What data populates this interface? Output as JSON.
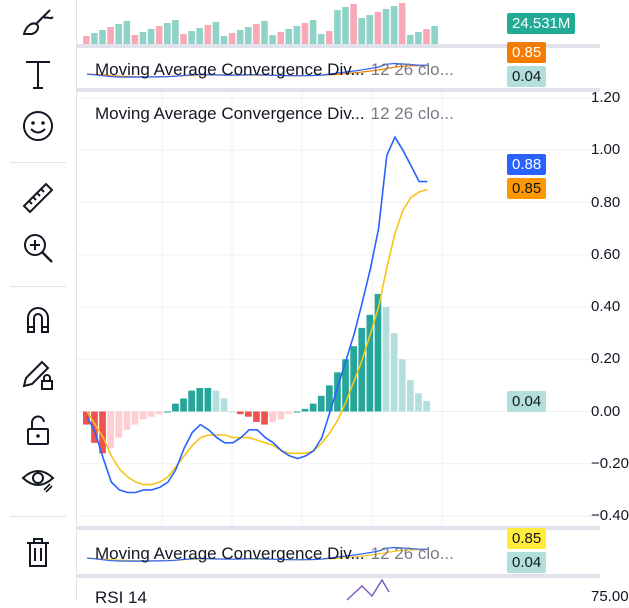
{
  "toolbar": {
    "items": [
      {
        "name": "brush-icon"
      },
      {
        "name": "text-icon"
      },
      {
        "name": "emoji-icon"
      },
      {
        "name": "ruler-icon"
      },
      {
        "name": "zoom-in-icon"
      },
      {
        "name": "magnet-icon"
      },
      {
        "name": "pencil-lock-icon"
      },
      {
        "name": "unlock-icon"
      },
      {
        "name": "eye-icon"
      },
      {
        "name": "trash-icon"
      }
    ]
  },
  "volume_pane": {
    "value_badge": "24.531M",
    "badge_color": "#22ab94"
  },
  "macd_collapsed_top": {
    "title": "Moving Average Convergence Div...",
    "params": "12 26 clo...",
    "badge_signal": "0.85",
    "badge_hist": "0.04",
    "signal_color": "#f57c00",
    "hist_color": "#b2dfdb"
  },
  "macd_main": {
    "title": "Moving Average Convergence Div...",
    "params": "12 26 clo...",
    "badge_macd": "0.88",
    "badge_signal": "0.85",
    "badge_hist": "0.04",
    "ticks": [
      "1.20",
      "1.00",
      "0.80",
      "0.60",
      "0.40",
      "0.20",
      "0.00",
      "−0.20",
      "−0.40"
    ],
    "colors": {
      "macd": "#2962ff",
      "signal": "#f5c518",
      "hist_up_strong": "#26a69a",
      "hist_up_weak": "#b2dfdb",
      "hist_down_strong": "#ef5350",
      "hist_down_weak": "#ffcdd2"
    }
  },
  "macd_collapsed_bottom": {
    "title": "Moving Average Convergence Div...",
    "params": "12 26 clo...",
    "badge_signal": "0.85",
    "badge_hist": "0.04",
    "signal_color": "#ffeb3b"
  },
  "rsi_pane": {
    "title": "RSI 14",
    "tick": "75.00"
  },
  "chart_data": {
    "type": "bar",
    "title": "Moving Average Convergence Div... 12 26 clo...",
    "ylim": [
      -0.4,
      1.2
    ],
    "grid": true,
    "series": [
      {
        "name": "Histogram",
        "values": [
          -0.05,
          -0.12,
          -0.16,
          -0.14,
          -0.1,
          -0.07,
          -0.05,
          -0.03,
          -0.02,
          -0.01,
          0.0,
          0.03,
          0.05,
          0.08,
          0.09,
          0.09,
          0.08,
          0.05,
          0.0,
          -0.01,
          -0.02,
          -0.04,
          -0.05,
          -0.04,
          -0.03,
          -0.01,
          0.0,
          0.01,
          0.03,
          0.06,
          0.1,
          0.15,
          0.2,
          0.25,
          0.32,
          0.37,
          0.45,
          0.4,
          0.3,
          0.2,
          0.12,
          0.07,
          0.04
        ]
      },
      {
        "name": "MACD",
        "values": [
          -0.02,
          -0.08,
          -0.18,
          -0.27,
          -0.3,
          -0.31,
          -0.31,
          -0.3,
          -0.3,
          -0.29,
          -0.27,
          -0.22,
          -0.14,
          -0.08,
          -0.05,
          -0.07,
          -0.1,
          -0.12,
          -0.12,
          -0.1,
          -0.07,
          -0.07,
          -0.1,
          -0.12,
          -0.15,
          -0.17,
          -0.18,
          -0.17,
          -0.15,
          -0.1,
          0.0,
          0.1,
          0.2,
          0.3,
          0.42,
          0.55,
          0.7,
          0.98,
          1.05,
          1.0,
          0.94,
          0.88,
          0.88
        ]
      },
      {
        "name": "Signal",
        "values": [
          0.0,
          -0.05,
          -0.1,
          -0.17,
          -0.22,
          -0.25,
          -0.27,
          -0.28,
          -0.28,
          -0.27,
          -0.25,
          -0.21,
          -0.17,
          -0.13,
          -0.1,
          -0.09,
          -0.09,
          -0.09,
          -0.1,
          -0.1,
          -0.1,
          -0.11,
          -0.12,
          -0.13,
          -0.15,
          -0.16,
          -0.16,
          -0.16,
          -0.15,
          -0.12,
          -0.08,
          -0.03,
          0.04,
          0.12,
          0.2,
          0.3,
          0.4,
          0.55,
          0.68,
          0.77,
          0.82,
          0.84,
          0.85
        ]
      }
    ]
  }
}
